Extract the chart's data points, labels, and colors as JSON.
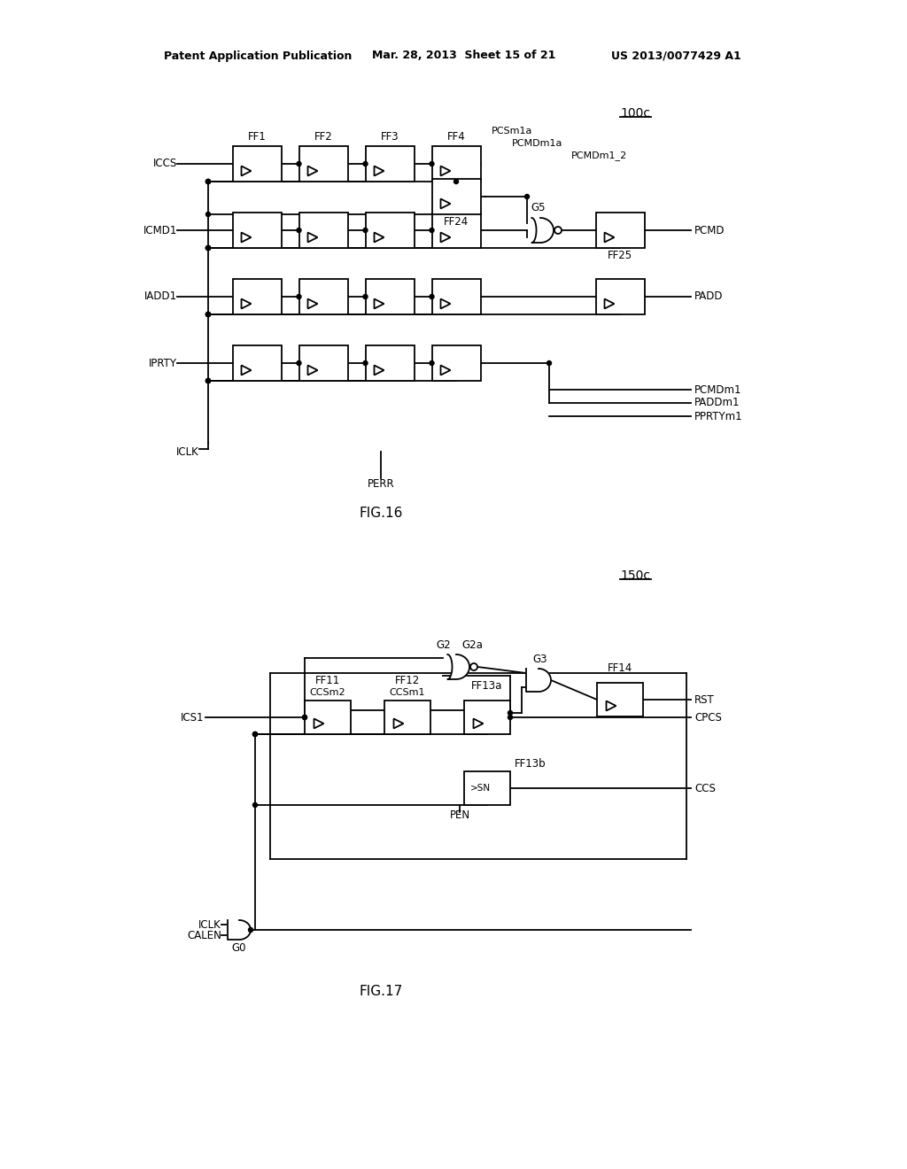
{
  "bg_color": "#ffffff",
  "line_color": "#000000",
  "text_color": "#000000",
  "header_left": "Patent Application Publication",
  "header_mid": "Mar. 28, 2013  Sheet 15 of 21",
  "header_right": "US 2013/0077429 A1",
  "fig16_label": "FIG.16",
  "fig17_label": "FIG.17",
  "ref_100c": "100c",
  "ref_150c": "150c"
}
